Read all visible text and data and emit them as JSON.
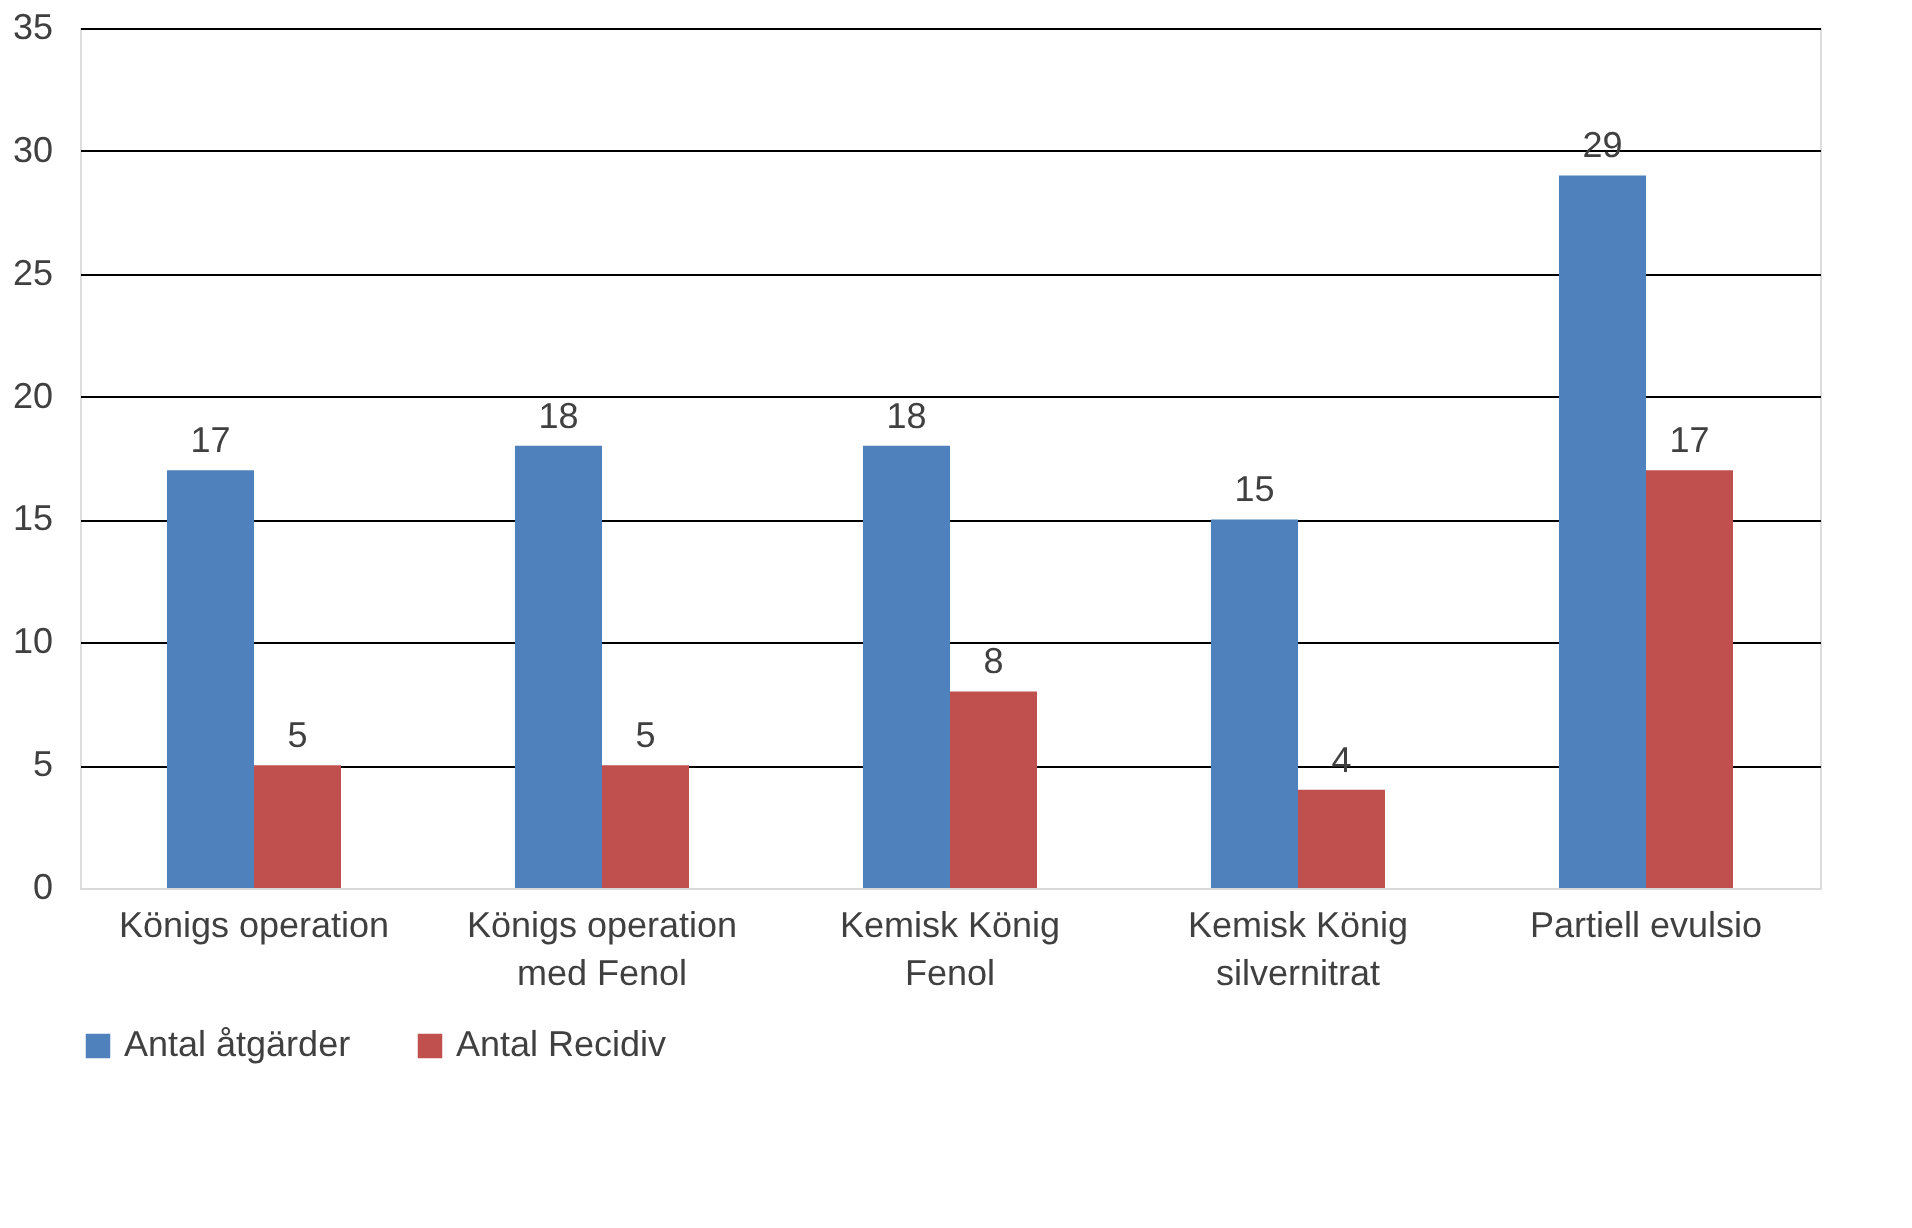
{
  "chart_data": {
    "type": "bar",
    "categories": [
      "Königs operation",
      "Königs operation\nmed Fenol",
      "Kemisk König\nFenol",
      "Kemisk König\nsilvernitrat",
      "Partiell evulsio"
    ],
    "series": [
      {
        "name": "Antal åtgärder",
        "color": "#4f81bd",
        "values": [
          17,
          18,
          18,
          15,
          29
        ]
      },
      {
        "name": "Antal Recidiv",
        "color": "#c0504d",
        "values": [
          5,
          5,
          8,
          4,
          17
        ]
      }
    ],
    "ylim": [
      0,
      35
    ],
    "yticks": [
      0,
      5,
      10,
      15,
      20,
      25,
      30,
      35
    ],
    "grid": "y",
    "legend": "bottom",
    "data_labels": true
  }
}
